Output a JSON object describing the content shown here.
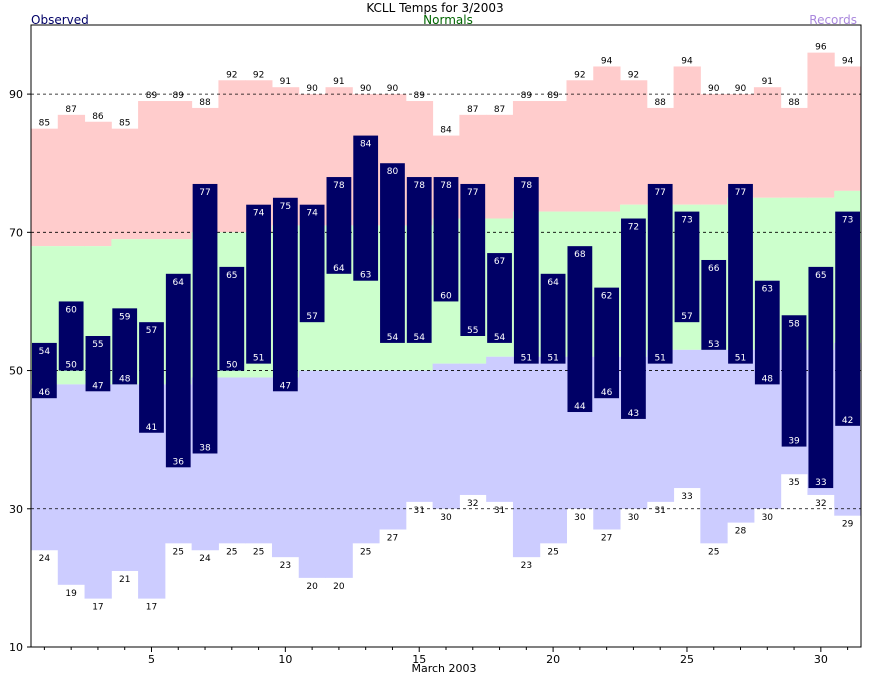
{
  "chart_data": {
    "type": "bar",
    "title": "KCLL Temps for 3/2003",
    "subtitle": "Normals",
    "legend_left": "Observed",
    "legend_right": "Records",
    "xlabel": "March 2003",
    "ylabel": "",
    "xlim": [
      1,
      31
    ],
    "ylim": [
      10,
      100
    ],
    "x_ticks": [
      5,
      10,
      15,
      20,
      25,
      30
    ],
    "y_ticks": [
      10,
      30,
      50,
      70,
      90
    ],
    "gridlines_y": [
      30,
      50,
      70,
      90
    ],
    "days": [
      1,
      2,
      3,
      4,
      5,
      6,
      7,
      8,
      9,
      10,
      11,
      12,
      13,
      14,
      15,
      16,
      17,
      18,
      19,
      20,
      21,
      22,
      23,
      24,
      25,
      26,
      27,
      28,
      29,
      30,
      31
    ],
    "series": [
      {
        "name": "Observed",
        "role": "observed_high",
        "values": [
          54,
          60,
          55,
          59,
          57,
          64,
          77,
          65,
          74,
          75,
          74,
          78,
          84,
          80,
          78,
          78,
          77,
          67,
          78,
          64,
          68,
          62,
          72,
          77,
          73,
          66,
          77,
          63,
          58,
          65,
          73
        ]
      },
      {
        "name": "Observed",
        "role": "observed_low",
        "values": [
          46,
          50,
          47,
          48,
          41,
          36,
          38,
          50,
          51,
          47,
          57,
          64,
          63,
          54,
          54,
          60,
          55,
          54,
          51,
          51,
          44,
          46,
          43,
          51,
          57,
          53,
          51,
          48,
          39,
          33,
          42
        ]
      },
      {
        "name": "Records",
        "role": "record_high",
        "values": [
          85,
          87,
          86,
          85,
          89,
          89,
          88,
          92,
          92,
          91,
          90,
          91,
          90,
          90,
          89,
          84,
          87,
          87,
          89,
          89,
          92,
          94,
          92,
          88,
          94,
          90,
          90,
          91,
          88,
          96,
          94
        ]
      },
      {
        "name": "Records",
        "role": "record_low",
        "values": [
          24,
          19,
          17,
          21,
          17,
          25,
          24,
          25,
          25,
          23,
          20,
          20,
          25,
          27,
          31,
          30,
          32,
          31,
          23,
          25,
          30,
          27,
          30,
          31,
          33,
          25,
          28,
          30,
          35,
          32,
          29
        ]
      },
      {
        "name": "Normals",
        "role": "normal_high",
        "values": [
          68,
          68,
          68,
          69,
          69,
          69,
          70,
          70,
          70,
          71,
          71,
          71,
          71,
          71,
          71,
          72,
          72,
          72,
          73,
          73,
          73,
          73,
          74,
          74,
          74,
          74,
          75,
          75,
          75,
          75,
          76
        ]
      },
      {
        "name": "Normals",
        "role": "normal_low",
        "values": [
          48,
          48,
          48,
          48,
          48,
          48,
          49,
          49,
          49,
          49,
          50,
          50,
          50,
          50,
          50,
          51,
          51,
          52,
          52,
          52,
          52,
          52,
          52,
          53,
          53,
          53,
          53,
          53,
          53,
          53,
          54
        ]
      }
    ],
    "colors": {
      "observed_fill": "#000066",
      "observed_text": "#ffffff",
      "record_high_fill": "#ffcccc",
      "normal_fill": "#ccffcc",
      "record_low_fill": "#ccccff",
      "title_observed": "#000066",
      "title_normals": "#006600",
      "title_records": "#aa88dd",
      "grid": "#000000",
      "axis": "#000000"
    },
    "grid": true,
    "legend_placement": "top"
  }
}
